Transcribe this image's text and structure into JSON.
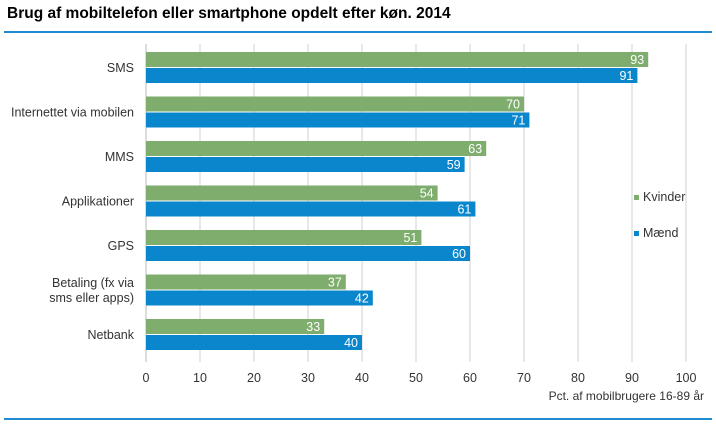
{
  "chart_data": {
    "type": "bar",
    "orientation": "horizontal",
    "title": "Brug af mobiltelefon eller smartphone opdelt efter køn. 2014",
    "xlabel": "Pct. af mobilbrugere 16-89 år",
    "categories": [
      [
        "SMS"
      ],
      [
        "Internettet via mobilen"
      ],
      [
        "MMS"
      ],
      [
        "Applikationer"
      ],
      [
        "GPS"
      ],
      [
        "Betaling (fx via",
        "sms eller apps)"
      ],
      [
        "Netbank"
      ]
    ],
    "series": [
      {
        "name": "Kvinder",
        "color": "#7fad6e",
        "values": [
          93,
          70,
          63,
          54,
          51,
          37,
          33
        ]
      },
      {
        "name": "Mænd",
        "color": "#0a86cd",
        "values": [
          91,
          71,
          59,
          61,
          60,
          42,
          40
        ]
      }
    ],
    "xlim": [
      0,
      100
    ],
    "xticks": [
      "0",
      "10",
      "20",
      "30",
      "40",
      "50",
      "60",
      "70",
      "80",
      "90",
      "100"
    ],
    "grid": true,
    "legend_position": "right"
  }
}
